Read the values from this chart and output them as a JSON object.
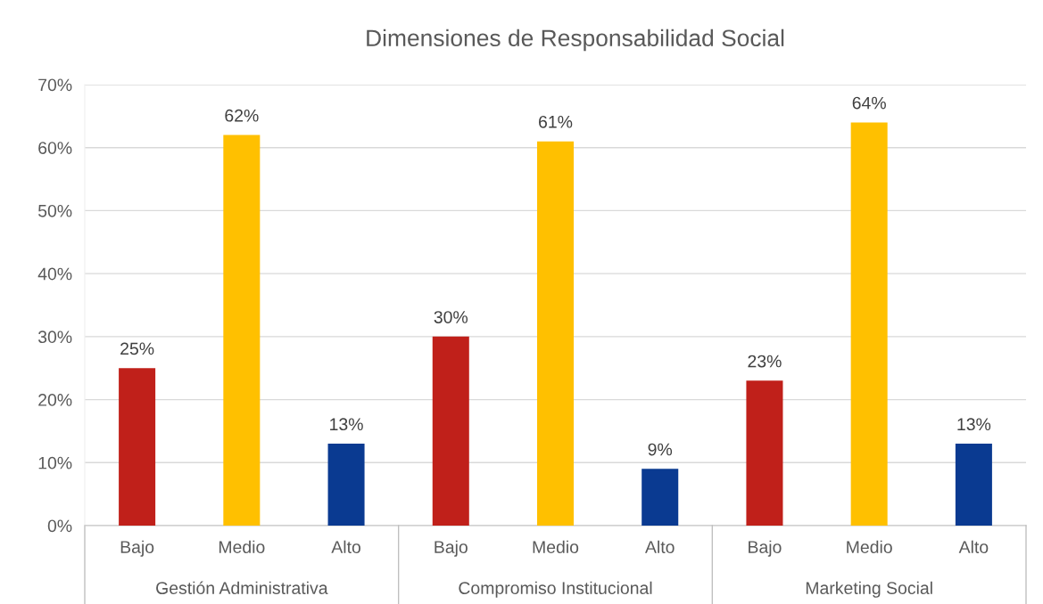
{
  "chart_data": {
    "type": "bar",
    "title": "Dimensiones de Responsabilidad Social",
    "categories": [
      "Gestión Administrativa",
      "Compromiso Institucional",
      "Marketing Social"
    ],
    "series": [
      {
        "name": "Bajo",
        "color": "#c0201a",
        "values": [
          25,
          30,
          23
        ],
        "value_labels": [
          "25%",
          "30%",
          "23%"
        ]
      },
      {
        "name": "Medio",
        "color": "#ffc000",
        "values": [
          62,
          61,
          64
        ],
        "value_labels": [
          "62%",
          "61%",
          "64%"
        ]
      },
      {
        "name": "Alto",
        "color": "#0a3a91",
        "values": [
          13,
          9,
          13
        ],
        "value_labels": [
          "13%",
          "9%",
          "13%"
        ]
      }
    ],
    "ylim": [
      0,
      70
    ],
    "yticks": [
      {
        "value": 0,
        "label": "0%"
      },
      {
        "value": 10,
        "label": "10%"
      },
      {
        "value": 20,
        "label": "20%"
      },
      {
        "value": 30,
        "label": "30%"
      },
      {
        "value": 40,
        "label": "40%"
      },
      {
        "value": 50,
        "label": "50%"
      },
      {
        "value": 60,
        "label": "60%"
      },
      {
        "value": 70,
        "label": "70%"
      }
    ],
    "grid": "y",
    "legend": false
  }
}
